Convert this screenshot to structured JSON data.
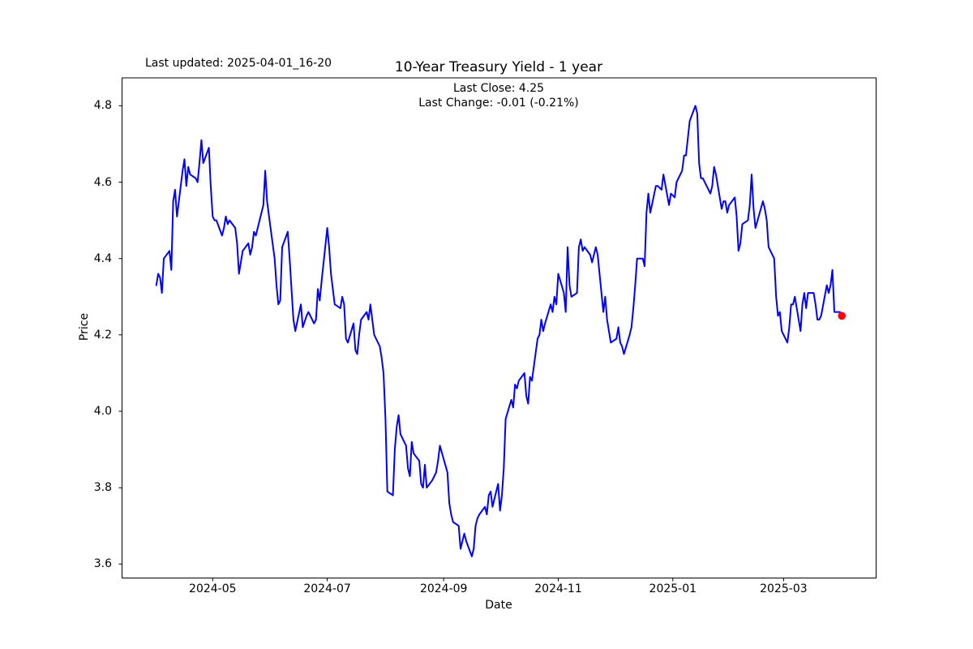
{
  "annotations": {
    "last_updated": "Last updated: 2025-04-01_16-20"
  },
  "chart_data": {
    "type": "line",
    "title": "10-Year Treasury Yield - 1 year",
    "subtitle_line1": "Last Close: 4.25",
    "subtitle_line2": "Last Change: -0.01 (-0.21%)",
    "xlabel": "Date",
    "ylabel": "Price",
    "grid": false,
    "legend": false,
    "line_color": "#0000ff",
    "marker_color": "#ff0000",
    "last_close": 4.25,
    "last_change": -0.01,
    "last_change_pct": -0.21,
    "base_date": "2024-04-01",
    "xlim_days": [
      -18.25,
      383.25
    ],
    "ylim": [
      3.5635,
      4.873
    ],
    "x_ticks": [
      {
        "label": "2024-05",
        "day": 30
      },
      {
        "label": "2024-07",
        "day": 91
      },
      {
        "label": "2024-09",
        "day": 153
      },
      {
        "label": "2024-11",
        "day": 214
      },
      {
        "label": "2025-01",
        "day": 275
      },
      {
        "label": "2025-03",
        "day": 334
      }
    ],
    "y_ticks": [
      "3.6",
      "3.8",
      "4.0",
      "4.2",
      "4.4",
      "4.6",
      "4.8"
    ],
    "points": [
      [
        0,
        4.33
      ],
      [
        1,
        4.36
      ],
      [
        2,
        4.35
      ],
      [
        3,
        4.31
      ],
      [
        4,
        4.4
      ],
      [
        7,
        4.42
      ],
      [
        8,
        4.37
      ],
      [
        9,
        4.55
      ],
      [
        10,
        4.58
      ],
      [
        11,
        4.51
      ],
      [
        14,
        4.63
      ],
      [
        15,
        4.66
      ],
      [
        16,
        4.59
      ],
      [
        17,
        4.64
      ],
      [
        18,
        4.62
      ],
      [
        21,
        4.61
      ],
      [
        22,
        4.6
      ],
      [
        23,
        4.65
      ],
      [
        24,
        4.71
      ],
      [
        25,
        4.65
      ],
      [
        28,
        4.69
      ],
      [
        29,
        4.59
      ],
      [
        30,
        4.51
      ],
      [
        31,
        4.5
      ],
      [
        32,
        4.5
      ],
      [
        35,
        4.46
      ],
      [
        36,
        4.48
      ],
      [
        37,
        4.51
      ],
      [
        38,
        4.49
      ],
      [
        39,
        4.5
      ],
      [
        42,
        4.48
      ],
      [
        43,
        4.44
      ],
      [
        44,
        4.36
      ],
      [
        45,
        4.39
      ],
      [
        46,
        4.42
      ],
      [
        49,
        4.44
      ],
      [
        50,
        4.41
      ],
      [
        51,
        4.43
      ],
      [
        52,
        4.47
      ],
      [
        53,
        4.46
      ],
      [
        57,
        4.54
      ],
      [
        58,
        4.63
      ],
      [
        59,
        4.55
      ],
      [
        60,
        4.51
      ],
      [
        63,
        4.4
      ],
      [
        64,
        4.33
      ],
      [
        65,
        4.28
      ],
      [
        66,
        4.29
      ],
      [
        67,
        4.43
      ],
      [
        70,
        4.47
      ],
      [
        71,
        4.4
      ],
      [
        72,
        4.32
      ],
      [
        73,
        4.24
      ],
      [
        74,
        4.21
      ],
      [
        77,
        4.28
      ],
      [
        78,
        4.22
      ],
      [
        80,
        4.25
      ],
      [
        81,
        4.26
      ],
      [
        84,
        4.23
      ],
      [
        85,
        4.24
      ],
      [
        86,
        4.32
      ],
      [
        87,
        4.29
      ],
      [
        88,
        4.34
      ],
      [
        91,
        4.48
      ],
      [
        92,
        4.43
      ],
      [
        93,
        4.36
      ],
      [
        95,
        4.28
      ],
      [
        98,
        4.27
      ],
      [
        99,
        4.3
      ],
      [
        100,
        4.28
      ],
      [
        101,
        4.19
      ],
      [
        102,
        4.18
      ],
      [
        105,
        4.23
      ],
      [
        106,
        4.16
      ],
      [
        107,
        4.15
      ],
      [
        108,
        4.2
      ],
      [
        109,
        4.24
      ],
      [
        112,
        4.26
      ],
      [
        113,
        4.24
      ],
      [
        114,
        4.28
      ],
      [
        115,
        4.24
      ],
      [
        116,
        4.2
      ],
      [
        119,
        4.17
      ],
      [
        120,
        4.14
      ],
      [
        121,
        4.1
      ],
      [
        122,
        3.98
      ],
      [
        123,
        3.79
      ],
      [
        126,
        3.78
      ],
      [
        127,
        3.9
      ],
      [
        128,
        3.96
      ],
      [
        129,
        3.99
      ],
      [
        130,
        3.94
      ],
      [
        133,
        3.91
      ],
      [
        134,
        3.85
      ],
      [
        135,
        3.83
      ],
      [
        136,
        3.92
      ],
      [
        137,
        3.89
      ],
      [
        140,
        3.87
      ],
      [
        141,
        3.81
      ],
      [
        142,
        3.8
      ],
      [
        143,
        3.86
      ],
      [
        144,
        3.8
      ],
      [
        147,
        3.82
      ],
      [
        148,
        3.83
      ],
      [
        149,
        3.84
      ],
      [
        150,
        3.87
      ],
      [
        151,
        3.91
      ],
      [
        155,
        3.84
      ],
      [
        156,
        3.76
      ],
      [
        157,
        3.73
      ],
      [
        158,
        3.71
      ],
      [
        161,
        3.7
      ],
      [
        162,
        3.64
      ],
      [
        163,
        3.66
      ],
      [
        164,
        3.68
      ],
      [
        165,
        3.66
      ],
      [
        168,
        3.62
      ],
      [
        169,
        3.64
      ],
      [
        170,
        3.7
      ],
      [
        171,
        3.72
      ],
      [
        172,
        3.73
      ],
      [
        175,
        3.75
      ],
      [
        176,
        3.73
      ],
      [
        177,
        3.78
      ],
      [
        178,
        3.79
      ],
      [
        179,
        3.75
      ],
      [
        182,
        3.81
      ],
      [
        183,
        3.74
      ],
      [
        184,
        3.78
      ],
      [
        185,
        3.85
      ],
      [
        186,
        3.98
      ],
      [
        189,
        4.03
      ],
      [
        190,
        4.01
      ],
      [
        191,
        4.07
      ],
      [
        192,
        4.06
      ],
      [
        193,
        4.08
      ],
      [
        196,
        4.1
      ],
      [
        197,
        4.04
      ],
      [
        198,
        4.02
      ],
      [
        199,
        4.09
      ],
      [
        200,
        4.08
      ],
      [
        203,
        4.19
      ],
      [
        204,
        4.2
      ],
      [
        205,
        4.24
      ],
      [
        206,
        4.21
      ],
      [
        207,
        4.23
      ],
      [
        210,
        4.28
      ],
      [
        211,
        4.26
      ],
      [
        212,
        4.3
      ],
      [
        213,
        4.28
      ],
      [
        214,
        4.36
      ],
      [
        217,
        4.31
      ],
      [
        218,
        4.26
      ],
      [
        219,
        4.43
      ],
      [
        220,
        4.33
      ],
      [
        221,
        4.3
      ],
      [
        224,
        4.31
      ],
      [
        225,
        4.43
      ],
      [
        226,
        4.45
      ],
      [
        227,
        4.42
      ],
      [
        228,
        4.43
      ],
      [
        231,
        4.41
      ],
      [
        232,
        4.39
      ],
      [
        233,
        4.41
      ],
      [
        234,
        4.43
      ],
      [
        235,
        4.41
      ],
      [
        238,
        4.26
      ],
      [
        239,
        4.3
      ],
      [
        240,
        4.24
      ],
      [
        242,
        4.18
      ],
      [
        245,
        4.19
      ],
      [
        246,
        4.22
      ],
      [
        247,
        4.18
      ],
      [
        248,
        4.17
      ],
      [
        249,
        4.15
      ],
      [
        252,
        4.2
      ],
      [
        253,
        4.22
      ],
      [
        254,
        4.27
      ],
      [
        255,
        4.33
      ],
      [
        256,
        4.4
      ],
      [
        259,
        4.4
      ],
      [
        260,
        4.38
      ],
      [
        261,
        4.52
      ],
      [
        262,
        4.57
      ],
      [
        263,
        4.52
      ],
      [
        266,
        4.59
      ],
      [
        267,
        4.59
      ],
      [
        269,
        4.58
      ],
      [
        270,
        4.62
      ],
      [
        273,
        4.54
      ],
      [
        274,
        4.57
      ],
      [
        276,
        4.56
      ],
      [
        277,
        4.6
      ],
      [
        280,
        4.63
      ],
      [
        281,
        4.67
      ],
      [
        282,
        4.67
      ],
      [
        284,
        4.76
      ],
      [
        287,
        4.8
      ],
      [
        288,
        4.78
      ],
      [
        289,
        4.65
      ],
      [
        290,
        4.61
      ],
      [
        291,
        4.61
      ],
      [
        295,
        4.57
      ],
      [
        296,
        4.59
      ],
      [
        297,
        4.64
      ],
      [
        298,
        4.62
      ],
      [
        301,
        4.53
      ],
      [
        302,
        4.55
      ],
      [
        303,
        4.55
      ],
      [
        304,
        4.52
      ],
      [
        305,
        4.54
      ],
      [
        308,
        4.56
      ],
      [
        309,
        4.51
      ],
      [
        310,
        4.42
      ],
      [
        311,
        4.44
      ],
      [
        312,
        4.49
      ],
      [
        315,
        4.5
      ],
      [
        316,
        4.54
      ],
      [
        317,
        4.62
      ],
      [
        318,
        4.53
      ],
      [
        319,
        4.48
      ],
      [
        323,
        4.55
      ],
      [
        324,
        4.53
      ],
      [
        325,
        4.5
      ],
      [
        326,
        4.43
      ],
      [
        329,
        4.4
      ],
      [
        330,
        4.3
      ],
      [
        331,
        4.25
      ],
      [
        332,
        4.26
      ],
      [
        333,
        4.21
      ],
      [
        336,
        4.18
      ],
      [
        337,
        4.22
      ],
      [
        338,
        4.28
      ],
      [
        339,
        4.28
      ],
      [
        340,
        4.3
      ],
      [
        343,
        4.21
      ],
      [
        344,
        4.28
      ],
      [
        345,
        4.31
      ],
      [
        346,
        4.27
      ],
      [
        347,
        4.31
      ],
      [
        350,
        4.31
      ],
      [
        351,
        4.28
      ],
      [
        352,
        4.24
      ],
      [
        353,
        4.24
      ],
      [
        354,
        4.25
      ],
      [
        357,
        4.33
      ],
      [
        358,
        4.31
      ],
      [
        359,
        4.33
      ],
      [
        360,
        4.37
      ],
      [
        361,
        4.26
      ],
      [
        364,
        4.26
      ],
      [
        365,
        4.25
      ]
    ]
  }
}
